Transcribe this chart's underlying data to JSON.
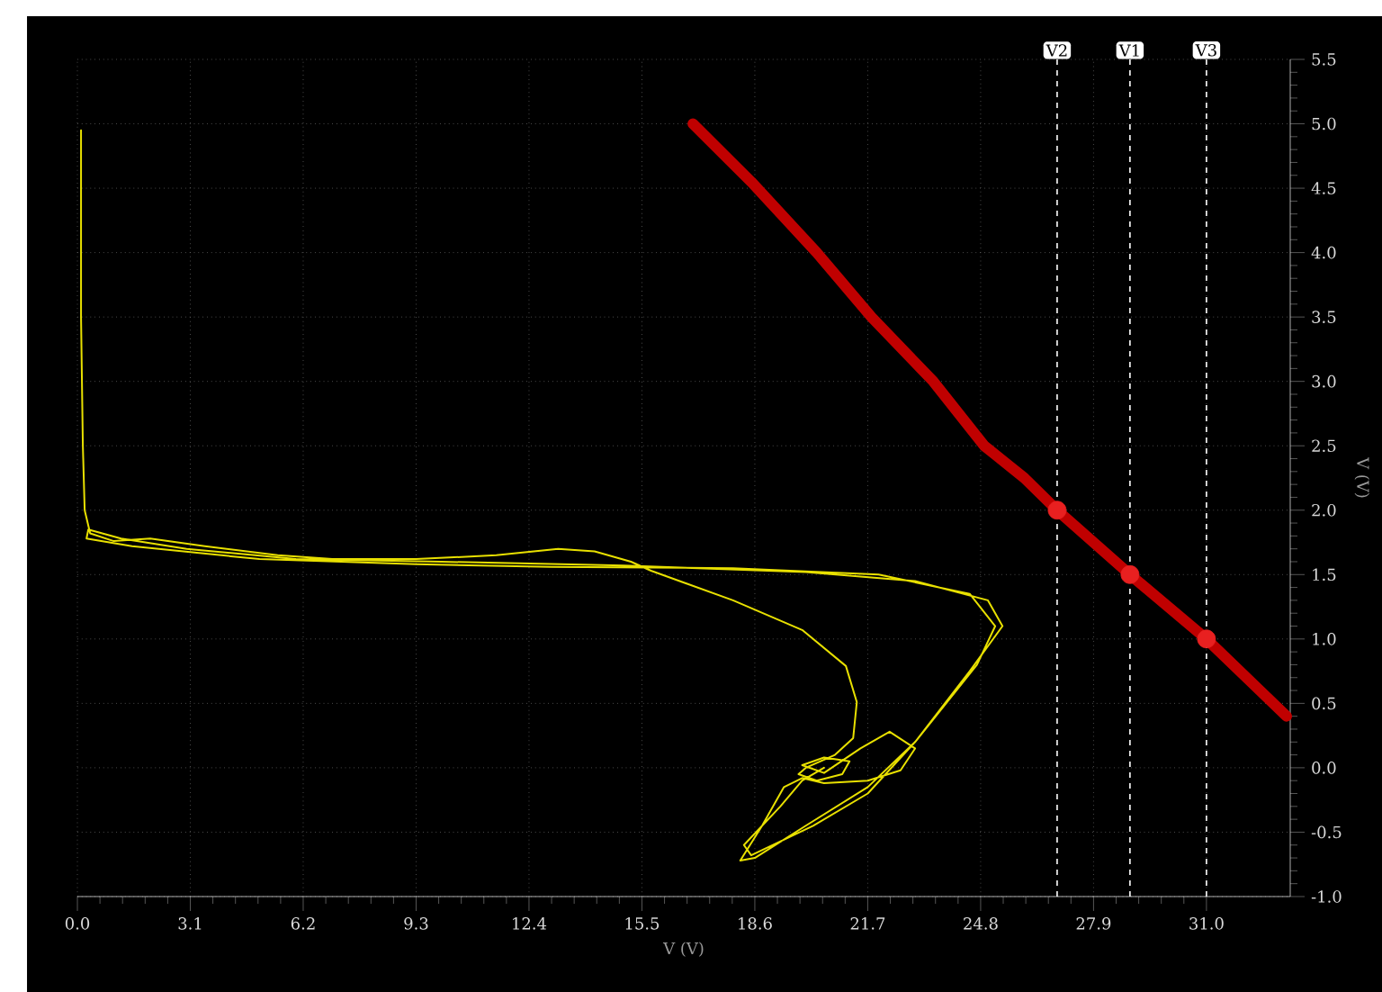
{
  "chart_data": {
    "type": "line",
    "xlabel": "V (V)",
    "ylabel": "V (V)",
    "xlim": [
      0,
      33.3
    ],
    "ylim": [
      -1.0,
      5.5
    ],
    "xticks": [
      {
        "value": 0,
        "label": "0.0"
      },
      {
        "value": 3.1,
        "label": "3.1"
      },
      {
        "value": 6.2,
        "label": "6.2"
      },
      {
        "value": 9.3,
        "label": "9.3"
      },
      {
        "value": 12.4,
        "label": "12.4"
      },
      {
        "value": 15.5,
        "label": "15.5"
      },
      {
        "value": 18.6,
        "label": "18.6"
      },
      {
        "value": 21.7,
        "label": "21.7"
      },
      {
        "value": 24.8,
        "label": "24.8"
      },
      {
        "value": 27.9,
        "label": "27.9"
      },
      {
        "value": 31.0,
        "label": "31.0"
      }
    ],
    "yticks": [
      {
        "value": -1.0,
        "label": "-1.0"
      },
      {
        "value": -0.5,
        "label": "-0.5"
      },
      {
        "value": 0,
        "label": "0.0"
      },
      {
        "value": 0.5,
        "label": "0.5"
      },
      {
        "value": 1.0,
        "label": "1.0"
      },
      {
        "value": 1.5,
        "label": "1.5"
      },
      {
        "value": 2.0,
        "label": "2.0"
      },
      {
        "value": 2.5,
        "label": "2.5"
      },
      {
        "value": 3.0,
        "label": "3.0"
      },
      {
        "value": 3.5,
        "label": "3.5"
      },
      {
        "value": 4.0,
        "label": "4.0"
      },
      {
        "value": 4.5,
        "label": "4.5"
      },
      {
        "value": 5.0,
        "label": "5.0"
      },
      {
        "value": 5.5,
        "label": "5.5"
      }
    ],
    "grid": true,
    "series": [
      {
        "color": "#e8e000",
        "x": [
          0.1,
          0.1,
          0.15,
          0.2,
          0.35,
          1.0,
          2.0,
          3.5,
          5.5,
          7,
          9.3,
          11.5,
          13.2,
          14.2,
          15.2,
          15.75,
          18,
          19.9,
          21.1,
          21.4,
          21.3,
          20.8,
          20.0,
          19.8,
          20.3,
          21.0,
          21.2,
          20.5,
          19.9,
          20.5,
          21.5,
          22.3,
          23.0,
          22.6,
          21.7,
          20.5,
          19.9,
          19.4,
          18.8,
          18.2,
          18.6,
          20,
          21.7,
          23,
          24.5,
          25.4,
          25.0,
          23,
          20,
          15,
          10,
          6,
          3,
          1.2,
          0.3,
          0.25,
          1.5,
          5,
          9.3,
          13,
          18,
          22,
          24.5,
          25.2,
          24.7,
          23.0,
          21.7,
          20.2,
          18.5,
          18.3,
          19.3,
          19.9,
          20.5
        ],
        "values": [
          4.95,
          3.5,
          2.5,
          2.0,
          1.82,
          1.76,
          1.78,
          1.72,
          1.65,
          1.62,
          1.62,
          1.65,
          1.7,
          1.68,
          1.6,
          1.53,
          1.3,
          1.07,
          0.79,
          0.51,
          0.23,
          0.1,
          0.0,
          -0.05,
          -0.1,
          -0.05,
          0.05,
          0.08,
          0.02,
          -0.04,
          0.15,
          0.28,
          0.15,
          -0.02,
          -0.1,
          -0.12,
          -0.08,
          -0.15,
          -0.45,
          -0.72,
          -0.7,
          -0.45,
          -0.15,
          0.2,
          0.75,
          1.1,
          1.3,
          1.45,
          1.52,
          1.57,
          1.6,
          1.62,
          1.7,
          1.78,
          1.85,
          1.78,
          1.72,
          1.62,
          1.58,
          1.56,
          1.55,
          1.5,
          1.35,
          1.1,
          0.8,
          0.2,
          -0.2,
          -0.45,
          -0.68,
          -0.6,
          -0.3,
          -0.1,
          0.0
        ]
      },
      {
        "color": "#c00000",
        "x": [
          16.9,
          18.5,
          20.3,
          21.8,
          23.5,
          24.9,
          26.0,
          26.9,
          28.9,
          31.0,
          33.2
        ],
        "values": [
          5.0,
          4.55,
          4.0,
          3.5,
          3.0,
          2.5,
          2.25,
          2.0,
          1.5,
          1.0,
          0.4
        ]
      },
      {
        "type": "scatter",
        "marker": "circle",
        "color": "#e82020",
        "x": [
          26.9,
          28.9,
          31.0
        ],
        "values": [
          2.0,
          1.5,
          1.0
        ]
      }
    ],
    "ref_lines": [
      {
        "axis": "x",
        "value": 26.9,
        "label": "V2",
        "color": "#ffffff",
        "line_style": "dashed"
      },
      {
        "axis": "x",
        "value": 28.9,
        "label": "V1",
        "color": "#ffffff",
        "line_style": "dashed"
      },
      {
        "axis": "x",
        "value": 31.0,
        "label": "V3",
        "color": "#ffffff",
        "line_style": "dashed"
      }
    ]
  }
}
